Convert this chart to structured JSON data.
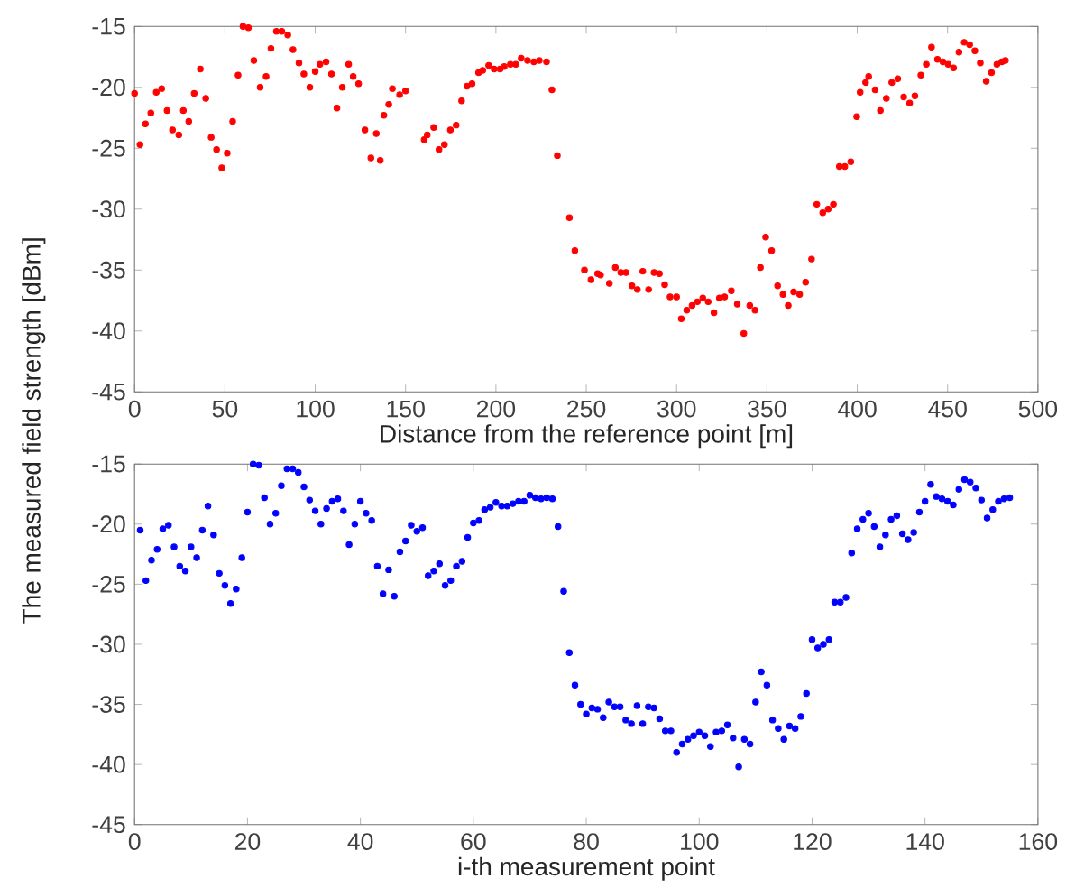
{
  "chart_data": [
    {
      "type": "scatter",
      "xlabel": "Distance from the reference point [m]",
      "ylabel": "The measured field strength [dBm]",
      "marker": "circle",
      "xlim": [
        0,
        500
      ],
      "xticks": [
        0,
        50,
        100,
        150,
        200,
        250,
        300,
        350,
        400,
        450,
        500
      ],
      "ylim": [
        -45,
        -15
      ],
      "yticks": [
        -45,
        -40,
        -35,
        -30,
        -25,
        -20,
        -15
      ],
      "x": [
        0,
        3,
        6,
        9,
        12,
        15,
        18,
        21,
        24.5,
        27,
        30,
        33,
        36.4,
        39.4,
        42.4,
        45.4,
        48.3,
        51.3,
        54.3,
        57.3,
        60,
        63,
        66,
        69.5,
        72.8,
        75.5,
        78.5,
        81.5,
        84.8,
        87.7,
        91,
        93.7,
        97,
        100,
        102.6,
        106,
        109,
        112,
        115,
        118.5,
        121,
        124,
        127.5,
        130.8,
        133.8,
        136,
        138,
        140.7,
        142.7,
        146.7,
        150,
        160.3,
        162,
        165.6,
        168.5,
        171.5,
        174.8,
        178,
        181,
        184,
        186.8,
        190.4,
        192.7,
        196,
        199,
        202.3,
        204.6,
        208,
        211,
        214,
        217.5,
        221,
        224,
        228,
        231,
        234,
        240.7,
        243.7,
        249,
        252.6,
        256.3,
        257.9,
        262.8,
        266.1,
        269.1,
        272,
        275.3,
        278.3,
        281.3,
        284.5,
        287.5,
        290.5,
        293.4,
        296.4,
        300,
        302.6,
        305.6,
        308.6,
        311.5,
        314.5,
        317.5,
        320.7,
        323.7,
        326.6,
        330.3,
        333.6,
        337.2,
        340.5,
        343.4,
        346.4,
        349.3,
        352.6,
        355.9,
        358.9,
        361.8,
        364.8,
        368.1,
        371.4,
        374.7,
        377.6,
        380.9,
        383.9,
        386.8,
        390.1,
        393.1,
        396.4,
        399.7,
        401.6,
        404.6,
        406.3,
        409.9,
        412.8,
        416.1,
        419.1,
        422.4,
        425.7,
        429,
        431.9,
        435.2,
        438.2,
        441.1,
        444.4,
        447.4,
        450.3,
        453.3,
        456.3,
        459.2,
        462.2,
        465.1,
        468.1,
        471.4,
        474.3,
        477.3,
        480,
        482
      ],
      "series": [
        {
          "color": "#ff0000",
          "values": [
            -20.5,
            -24.7,
            -23.0,
            -22.1,
            -20.4,
            -20.1,
            -21.9,
            -23.5,
            -23.9,
            -21.9,
            -22.8,
            -20.5,
            -18.5,
            -20.9,
            -24.1,
            -25.1,
            -26.6,
            -25.4,
            -22.8,
            -19.0,
            -15.0,
            -15.1,
            -17.8,
            -20.0,
            -19.1,
            -16.8,
            -15.4,
            -15.4,
            -15.7,
            -16.9,
            -18.0,
            -18.9,
            -20.0,
            -18.7,
            -18.1,
            -17.9,
            -18.9,
            -21.7,
            -20.0,
            -18.1,
            -19.1,
            -19.7,
            -23.5,
            -25.8,
            -23.8,
            -26.0,
            -22.3,
            -21.4,
            -20.1,
            -20.6,
            -20.3,
            -24.3,
            -23.9,
            -23.3,
            -25.1,
            -24.7,
            -23.5,
            -23.1,
            -21.1,
            -19.9,
            -19.7,
            -18.8,
            -18.6,
            -18.2,
            -18.5,
            -18.5,
            -18.3,
            -18.1,
            -18.1,
            -17.6,
            -17.8,
            -17.9,
            -17.8,
            -17.9,
            -20.2,
            -25.6,
            -30.7,
            -33.4,
            -35.0,
            -35.8,
            -35.3,
            -35.4,
            -36.1,
            -34.8,
            -35.2,
            -35.2,
            -36.3,
            -36.6,
            -35.1,
            -36.6,
            -35.2,
            -35.3,
            -36.2,
            -37.2,
            -37.2,
            -39.0,
            -38.3,
            -37.9,
            -37.6,
            -37.3,
            -37.6,
            -38.5,
            -37.3,
            -37.2,
            -36.7,
            -37.8,
            -40.2,
            -37.9,
            -38.3,
            -34.8,
            -32.3,
            -33.4,
            -36.3,
            -37.0,
            -37.9,
            -36.8,
            -37.0,
            -36.0,
            -34.1,
            -29.6,
            -30.3,
            -30.0,
            -29.6,
            -26.5,
            -26.5,
            -26.1,
            -22.4,
            -20.4,
            -19.6,
            -19.1,
            -20.2,
            -21.9,
            -20.9,
            -19.6,
            -19.3,
            -20.8,
            -21.3,
            -20.7,
            -19.0,
            -18.1,
            -16.7,
            -17.7,
            -17.9,
            -18.1,
            -18.4,
            -17.1,
            -16.3,
            -16.5,
            -17.0,
            -18.0,
            -19.5,
            -18.8,
            -18.1,
            -17.9,
            -17.8
          ]
        }
      ]
    },
    {
      "type": "scatter",
      "xlabel": "i-th measurement point",
      "marker": "circle",
      "xlim": [
        0,
        160
      ],
      "xticks": [
        0,
        20,
        40,
        60,
        80,
        100,
        120,
        140,
        160
      ],
      "ylim": [
        -45,
        -15
      ],
      "yticks": [
        -45,
        -40,
        -35,
        -30,
        -25,
        -20,
        -15
      ],
      "x": [
        1,
        2,
        3,
        4,
        5,
        6,
        7,
        8,
        9,
        10,
        11,
        12,
        13,
        14,
        15,
        16,
        17,
        18,
        19,
        20,
        21,
        22,
        23,
        24,
        25,
        26,
        27,
        28,
        29,
        30,
        31,
        32,
        33,
        34,
        35,
        36,
        37,
        38,
        39,
        40,
        41,
        42,
        43,
        44,
        45,
        46,
        47,
        48,
        49,
        50,
        51,
        52,
        53,
        54,
        55,
        56,
        57,
        58,
        59,
        60,
        61,
        62,
        63,
        64,
        65,
        66,
        67,
        68,
        69,
        70,
        71,
        72,
        73,
        74,
        75,
        76,
        77,
        78,
        79,
        80,
        81,
        82,
        83,
        84,
        85,
        86,
        87,
        88,
        89,
        90,
        91,
        92,
        93,
        94,
        95,
        96,
        97,
        98,
        99,
        100,
        101,
        102,
        103,
        104,
        105,
        106,
        107,
        108,
        109,
        110,
        111,
        112,
        113,
        114,
        115,
        116,
        117,
        118,
        119,
        120,
        121,
        122,
        123,
        124,
        125,
        126,
        127,
        128,
        129,
        130,
        131,
        132,
        133,
        134,
        135,
        136,
        137,
        138,
        139,
        140,
        141,
        142,
        143,
        144,
        145,
        146,
        147,
        148,
        149,
        150,
        151,
        152,
        153,
        154,
        155
      ],
      "series": [
        {
          "color": "#0000ff",
          "values": [
            -20.5,
            -24.7,
            -23.0,
            -22.1,
            -20.4,
            -20.1,
            -21.9,
            -23.5,
            -23.9,
            -21.9,
            -22.8,
            -20.5,
            -18.5,
            -20.9,
            -24.1,
            -25.1,
            -26.6,
            -25.4,
            -22.8,
            -19.0,
            -15.0,
            -15.1,
            -17.8,
            -20.0,
            -19.1,
            -16.8,
            -15.4,
            -15.4,
            -15.7,
            -16.9,
            -18.0,
            -18.9,
            -20.0,
            -18.7,
            -18.1,
            -17.9,
            -18.9,
            -21.7,
            -20.0,
            -18.1,
            -19.1,
            -19.7,
            -23.5,
            -25.8,
            -23.8,
            -26.0,
            -22.3,
            -21.4,
            -20.1,
            -20.6,
            -20.3,
            -24.3,
            -23.9,
            -23.3,
            -25.1,
            -24.7,
            -23.5,
            -23.1,
            -21.1,
            -19.9,
            -19.7,
            -18.8,
            -18.6,
            -18.2,
            -18.5,
            -18.5,
            -18.3,
            -18.1,
            -18.1,
            -17.6,
            -17.8,
            -17.9,
            -17.8,
            -17.9,
            -20.2,
            -25.6,
            -30.7,
            -33.4,
            -35.0,
            -35.8,
            -35.3,
            -35.4,
            -36.1,
            -34.8,
            -35.2,
            -35.2,
            -36.3,
            -36.6,
            -35.1,
            -36.6,
            -35.2,
            -35.3,
            -36.2,
            -37.2,
            -37.2,
            -39.0,
            -38.3,
            -37.9,
            -37.6,
            -37.3,
            -37.6,
            -38.5,
            -37.3,
            -37.2,
            -36.7,
            -37.8,
            -40.2,
            -37.9,
            -38.3,
            -34.8,
            -32.3,
            -33.4,
            -36.3,
            -37.0,
            -37.9,
            -36.8,
            -37.0,
            -36.0,
            -34.1,
            -29.6,
            -30.3,
            -30.0,
            -29.6,
            -26.5,
            -26.5,
            -26.1,
            -22.4,
            -20.4,
            -19.6,
            -19.1,
            -20.2,
            -21.9,
            -20.9,
            -19.6,
            -19.3,
            -20.8,
            -21.3,
            -20.7,
            -19.0,
            -18.1,
            -16.7,
            -17.7,
            -17.9,
            -18.1,
            -18.4,
            -17.1,
            -16.3,
            -16.5,
            -17.0,
            -18.0,
            -19.5,
            -18.8,
            -18.1,
            -17.9,
            -17.8
          ]
        }
      ]
    }
  ]
}
